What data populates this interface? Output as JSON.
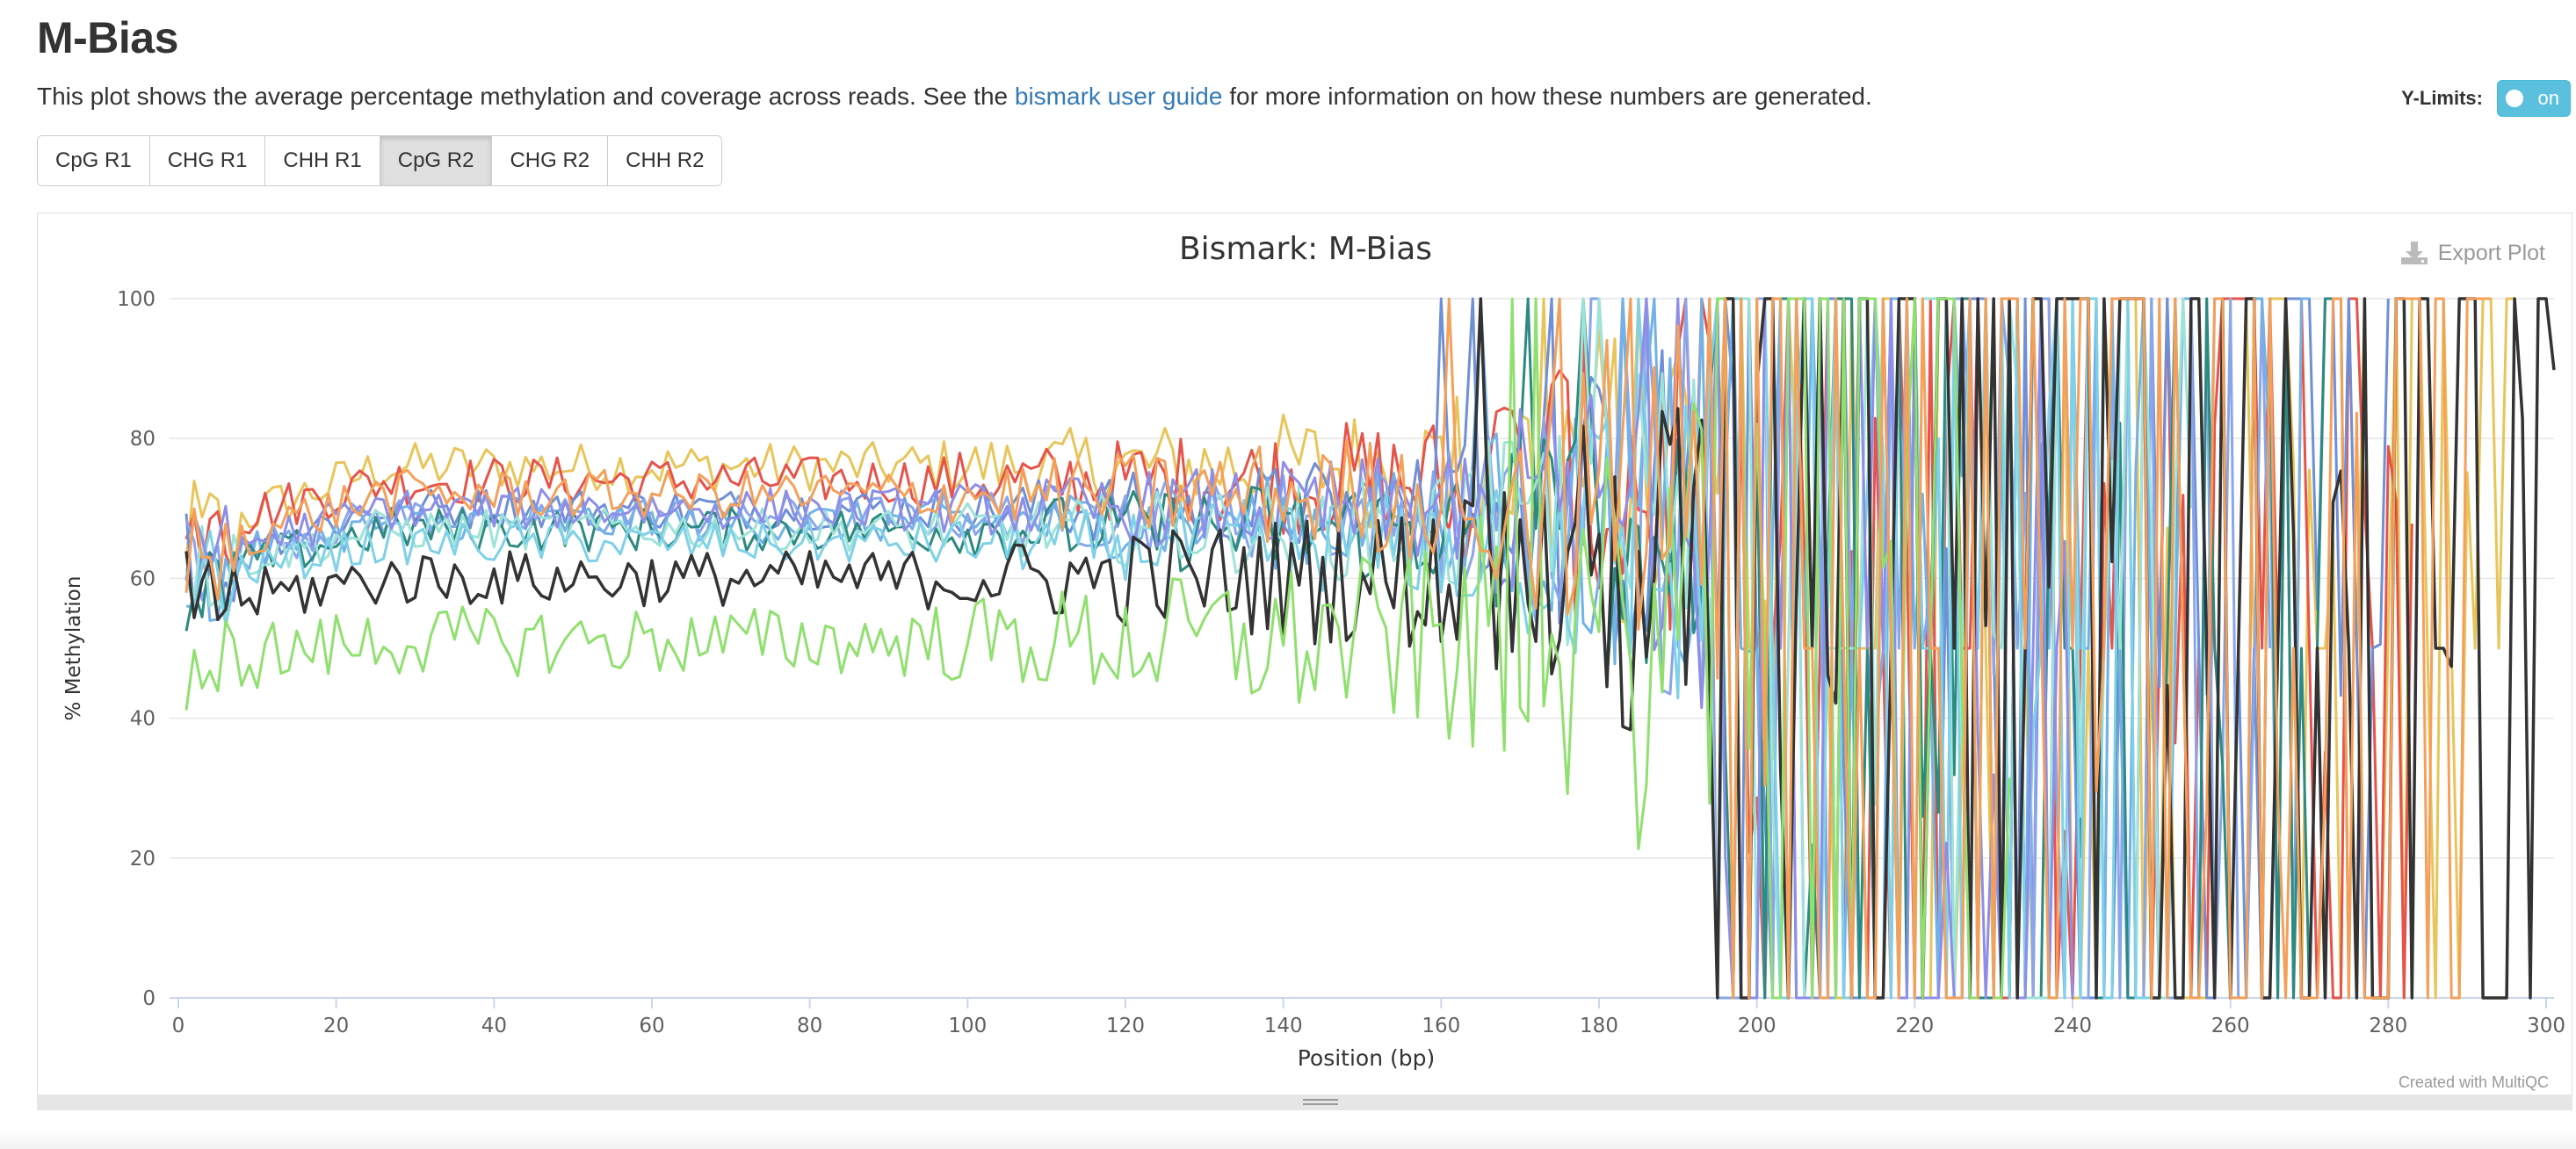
{
  "page": {
    "title": "M-Bias",
    "description_before": "This plot shows the average percentage methylation and coverage across reads. See the ",
    "description_link": "bismark user guide",
    "description_after": " for more information on how these numbers are generated."
  },
  "ylimits": {
    "label": "Y-Limits:",
    "toggle_label": "on",
    "toggle_state": true
  },
  "tabs": [
    {
      "label": "CpG R1",
      "active": false
    },
    {
      "label": "CHG R1",
      "active": false
    },
    {
      "label": "CHH R1",
      "active": false
    },
    {
      "label": "CpG R2",
      "active": true
    },
    {
      "label": "CHG R2",
      "active": false
    },
    {
      "label": "CHH R2",
      "active": false
    }
  ],
  "plot": {
    "export_label": "Export Plot",
    "credit": "Created with MultiQC"
  },
  "chart_data": {
    "type": "line",
    "title": "Bismark: M-Bias",
    "xlabel": "Position (bp)",
    "ylabel": "% Methylation",
    "xlim": [
      0,
      301
    ],
    "ylim": [
      0,
      100
    ],
    "xticks": [
      0,
      20,
      40,
      60,
      80,
      100,
      120,
      140,
      160,
      180,
      200,
      220,
      240,
      260,
      280,
      300
    ],
    "yticks": [
      0,
      20,
      40,
      60,
      80,
      100
    ],
    "grid": true,
    "legend": "none",
    "series": [
      {
        "color": "#e8c55a",
        "start": 66,
        "plateau": 76,
        "noise": 3.5,
        "end": 296
      },
      {
        "color": "#e5534b",
        "start": 67,
        "plateau": 74,
        "noise": 3.5,
        "end": 283
      },
      {
        "color": "#6f8fd8",
        "start": 63,
        "plateau": 70,
        "noise": 3.0,
        "end": 280
      },
      {
        "color": "#8aa6ea",
        "start": 62,
        "plateau": 69,
        "noise": 3.0,
        "end": 265
      },
      {
        "color": "#72b2e6",
        "start": 61,
        "plateau": 68,
        "noise": 3.0,
        "end": 270
      },
      {
        "color": "#2d8a80",
        "start": 60,
        "plateau": 67,
        "noise": 3.2,
        "end": 275
      },
      {
        "color": "#9ee3d8",
        "start": 61,
        "plateau": 67,
        "noise": 3.0,
        "end": 255
      },
      {
        "color": "#7fd1e8",
        "start": 60,
        "plateau": 65,
        "noise": 3.0,
        "end": 250
      },
      {
        "color": "#8e8ee8",
        "start": 63,
        "plateau": 70,
        "noise": 3.0,
        "end": 240
      },
      {
        "color": "#333333",
        "start": 56,
        "plateau": 60,
        "noise": 4.0,
        "end": 301
      },
      {
        "color": "#90e070",
        "start": 48,
        "plateau": 51,
        "noise": 5.0,
        "end": 232
      },
      {
        "color": "#f4a05a",
        "start": 64,
        "plateau": 72,
        "noise": 3.5,
        "end": 293
      }
    ]
  }
}
